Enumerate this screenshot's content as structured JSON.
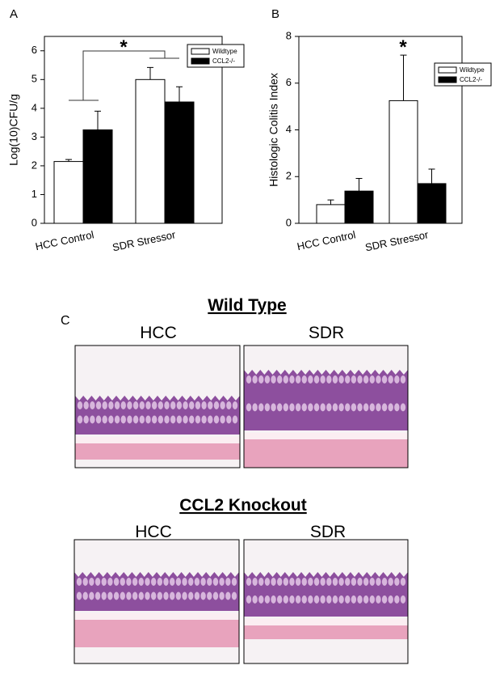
{
  "chart_data": [
    {
      "type": "bar",
      "panel_label": "A",
      "ylabel": "Log(10)CFU/g",
      "categories": [
        "HCC Control",
        "SDR Stressor"
      ],
      "series": [
        {
          "name": "Wildtype",
          "color": "#ffffff",
          "values": [
            2.15,
            5.0
          ],
          "errors": [
            0.07,
            0.42
          ]
        },
        {
          "name": "CCL2-/-",
          "color": "#000000",
          "values": [
            3.25,
            4.22
          ],
          "errors": [
            0.65,
            0.53
          ]
        }
      ],
      "ylim": [
        0,
        6.5
      ],
      "yticks": [
        0,
        1,
        2,
        3,
        4,
        5,
        6
      ],
      "legend": "upper right",
      "annotations": [
        "*"
      ]
    },
    {
      "type": "bar",
      "panel_label": "B",
      "ylabel": "Histologic Colitis Index",
      "categories": [
        "HCC Control",
        "SDR Stressor"
      ],
      "series": [
        {
          "name": "Wildtype",
          "color": "#ffffff",
          "values": [
            0.8,
            5.25
          ],
          "errors": [
            0.2,
            1.95
          ]
        },
        {
          "name": "CCL2-/-",
          "color": "#000000",
          "values": [
            1.38,
            1.7
          ],
          "errors": [
            0.54,
            0.62
          ]
        }
      ],
      "ylim": [
        0,
        8
      ],
      "yticks": [
        0,
        2,
        4,
        6,
        8
      ],
      "legend": "upper right",
      "annotations": [
        "*"
      ]
    }
  ],
  "panel_c": {
    "label": "C",
    "groups": [
      {
        "title": "Wild Type",
        "columns": [
          "HCC",
          "SDR"
        ]
      },
      {
        "title": "CCL2 Knockout",
        "columns": [
          "HCC",
          "SDR"
        ]
      }
    ]
  }
}
